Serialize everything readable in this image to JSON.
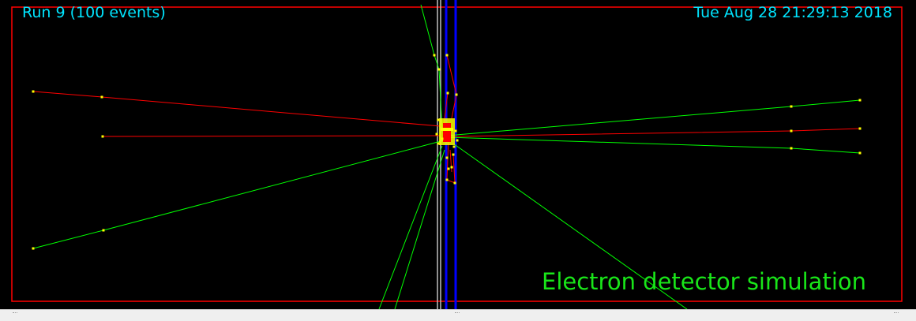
{
  "viewer": {
    "run_label": "Run 9 (100 events)",
    "timestamp": "Tue Aug 28 21:29:13 2018",
    "title": "Electron detector simulation"
  },
  "colors": {
    "background": "#000000",
    "frame": "#ff0000",
    "hud_text": "#00e5ff",
    "title_text": "#19e619",
    "track_positive": "#00ff00",
    "track_negative": "#ff0000",
    "step_points": "#ffff00",
    "detector_plane": "#0000ff",
    "support_structure": "#cccccc"
  }
}
